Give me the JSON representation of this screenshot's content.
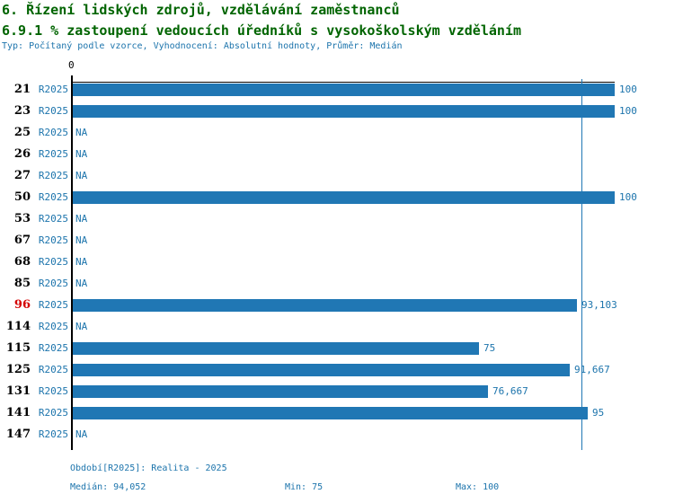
{
  "header": {
    "title": "6. Řízení lidských zdrojů, vzdělávání zaměstnanců",
    "indicator": "6.9.1 % zastoupení vedoucích úředníků s vysokoškolským vzděláním",
    "meta": "Typ: Počítaný podle vzorce, Vyhodnocení: Absolutní hodnoty, Průměr: Medián"
  },
  "chart_data": {
    "type": "bar",
    "orientation": "horizontal",
    "xlabel": "",
    "ylabel": "",
    "xlim": [
      0,
      100
    ],
    "axis_zero_label": "0",
    "unit": "%",
    "median_value": 94.052,
    "grid": false,
    "rows": [
      {
        "id": "21",
        "period": "R2025",
        "value": 100,
        "display": "100",
        "highlight": false
      },
      {
        "id": "23",
        "period": "R2025",
        "value": 100,
        "display": "100",
        "highlight": false
      },
      {
        "id": "25",
        "period": "R2025",
        "value": null,
        "display": "NA",
        "highlight": false
      },
      {
        "id": "26",
        "period": "R2025",
        "value": null,
        "display": "NA",
        "highlight": false
      },
      {
        "id": "27",
        "period": "R2025",
        "value": null,
        "display": "NA",
        "highlight": false
      },
      {
        "id": "50",
        "period": "R2025",
        "value": 100,
        "display": "100",
        "highlight": false
      },
      {
        "id": "53",
        "period": "R2025",
        "value": null,
        "display": "NA",
        "highlight": false
      },
      {
        "id": "67",
        "period": "R2025",
        "value": null,
        "display": "NA",
        "highlight": false
      },
      {
        "id": "68",
        "period": "R2025",
        "value": null,
        "display": "NA",
        "highlight": false
      },
      {
        "id": "85",
        "period": "R2025",
        "value": null,
        "display": "NA",
        "highlight": false
      },
      {
        "id": "96",
        "period": "R2025",
        "value": 93.103,
        "display": "93,103",
        "highlight": true
      },
      {
        "id": "114",
        "period": "R2025",
        "value": null,
        "display": "NA",
        "highlight": false
      },
      {
        "id": "115",
        "period": "R2025",
        "value": 75,
        "display": "75",
        "highlight": false
      },
      {
        "id": "125",
        "period": "R2025",
        "value": 91.667,
        "display": "91,667",
        "highlight": false
      },
      {
        "id": "131",
        "period": "R2025",
        "value": 76.667,
        "display": "76,667",
        "highlight": false
      },
      {
        "id": "141",
        "period": "R2025",
        "value": 95,
        "display": "95",
        "highlight": false
      },
      {
        "id": "147",
        "period": "R2025",
        "value": null,
        "display": "NA",
        "highlight": false
      }
    ]
  },
  "footer": {
    "period": "Období[R2025]: Realita - 2025",
    "median": "Medián: 94,052",
    "min": "Min: 75",
    "max": "Max: 100"
  },
  "colors": {
    "background": "#FFFFFF",
    "title": "#006400",
    "meta": "#1C74AC",
    "bar": "#2077B4",
    "value": "#1C74AC",
    "row_id": "#000000",
    "highlight": "#D40000",
    "axis": "#000000",
    "median": "#2077B4"
  }
}
